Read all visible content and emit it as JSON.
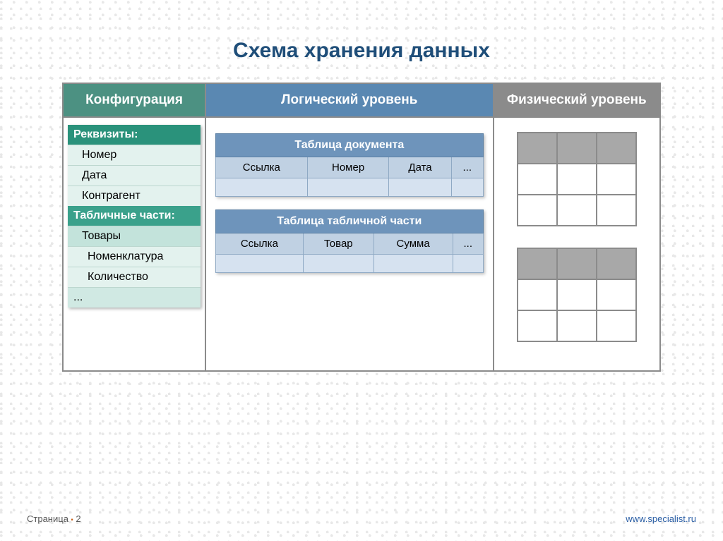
{
  "title": "Схема хранения данных",
  "columns": {
    "config": {
      "label": "Конфигурация",
      "bg": "#4c9182"
    },
    "logical": {
      "label": "Логический уровень",
      "bg": "#5a88b2"
    },
    "physical": {
      "label": "Физический уровень",
      "bg": "#8b8b8b"
    }
  },
  "config_panel": {
    "section1": {
      "title": "Реквизиты:",
      "bg": "#2a927b",
      "item_bg": "#e3f2ee",
      "items": [
        "Номер",
        "Дата",
        "Контрагент"
      ]
    },
    "section2": {
      "title": "Табличные части:",
      "bg": "#3aa18b",
      "item_bg": "#c3e3db",
      "items": [
        "Товары"
      ],
      "subitems": [
        "Номенклатура",
        "Количество"
      ],
      "sub_bg": "#e3f2ee"
    },
    "ellipsis": "...",
    "ellipsis_bg": "#d0e9e3"
  },
  "logical_tables": {
    "t1": {
      "title": "Таблица документа",
      "cols": [
        "Ссылка",
        "Номер",
        "Дата",
        "..."
      ]
    },
    "t2": {
      "title": "Таблица табличной части",
      "cols": [
        "Ссылка",
        "Товар",
        "Сумма",
        "..."
      ]
    }
  },
  "physical_grids": {
    "header_bg": "#a8a8a8",
    "cell_bg": "#ffffff",
    "grid_cols": 3,
    "grid_rows": 3
  },
  "footer": {
    "page_label": "Страница",
    "page_sep": "▪",
    "page_num": "2",
    "url": "www.specialist.ru"
  }
}
